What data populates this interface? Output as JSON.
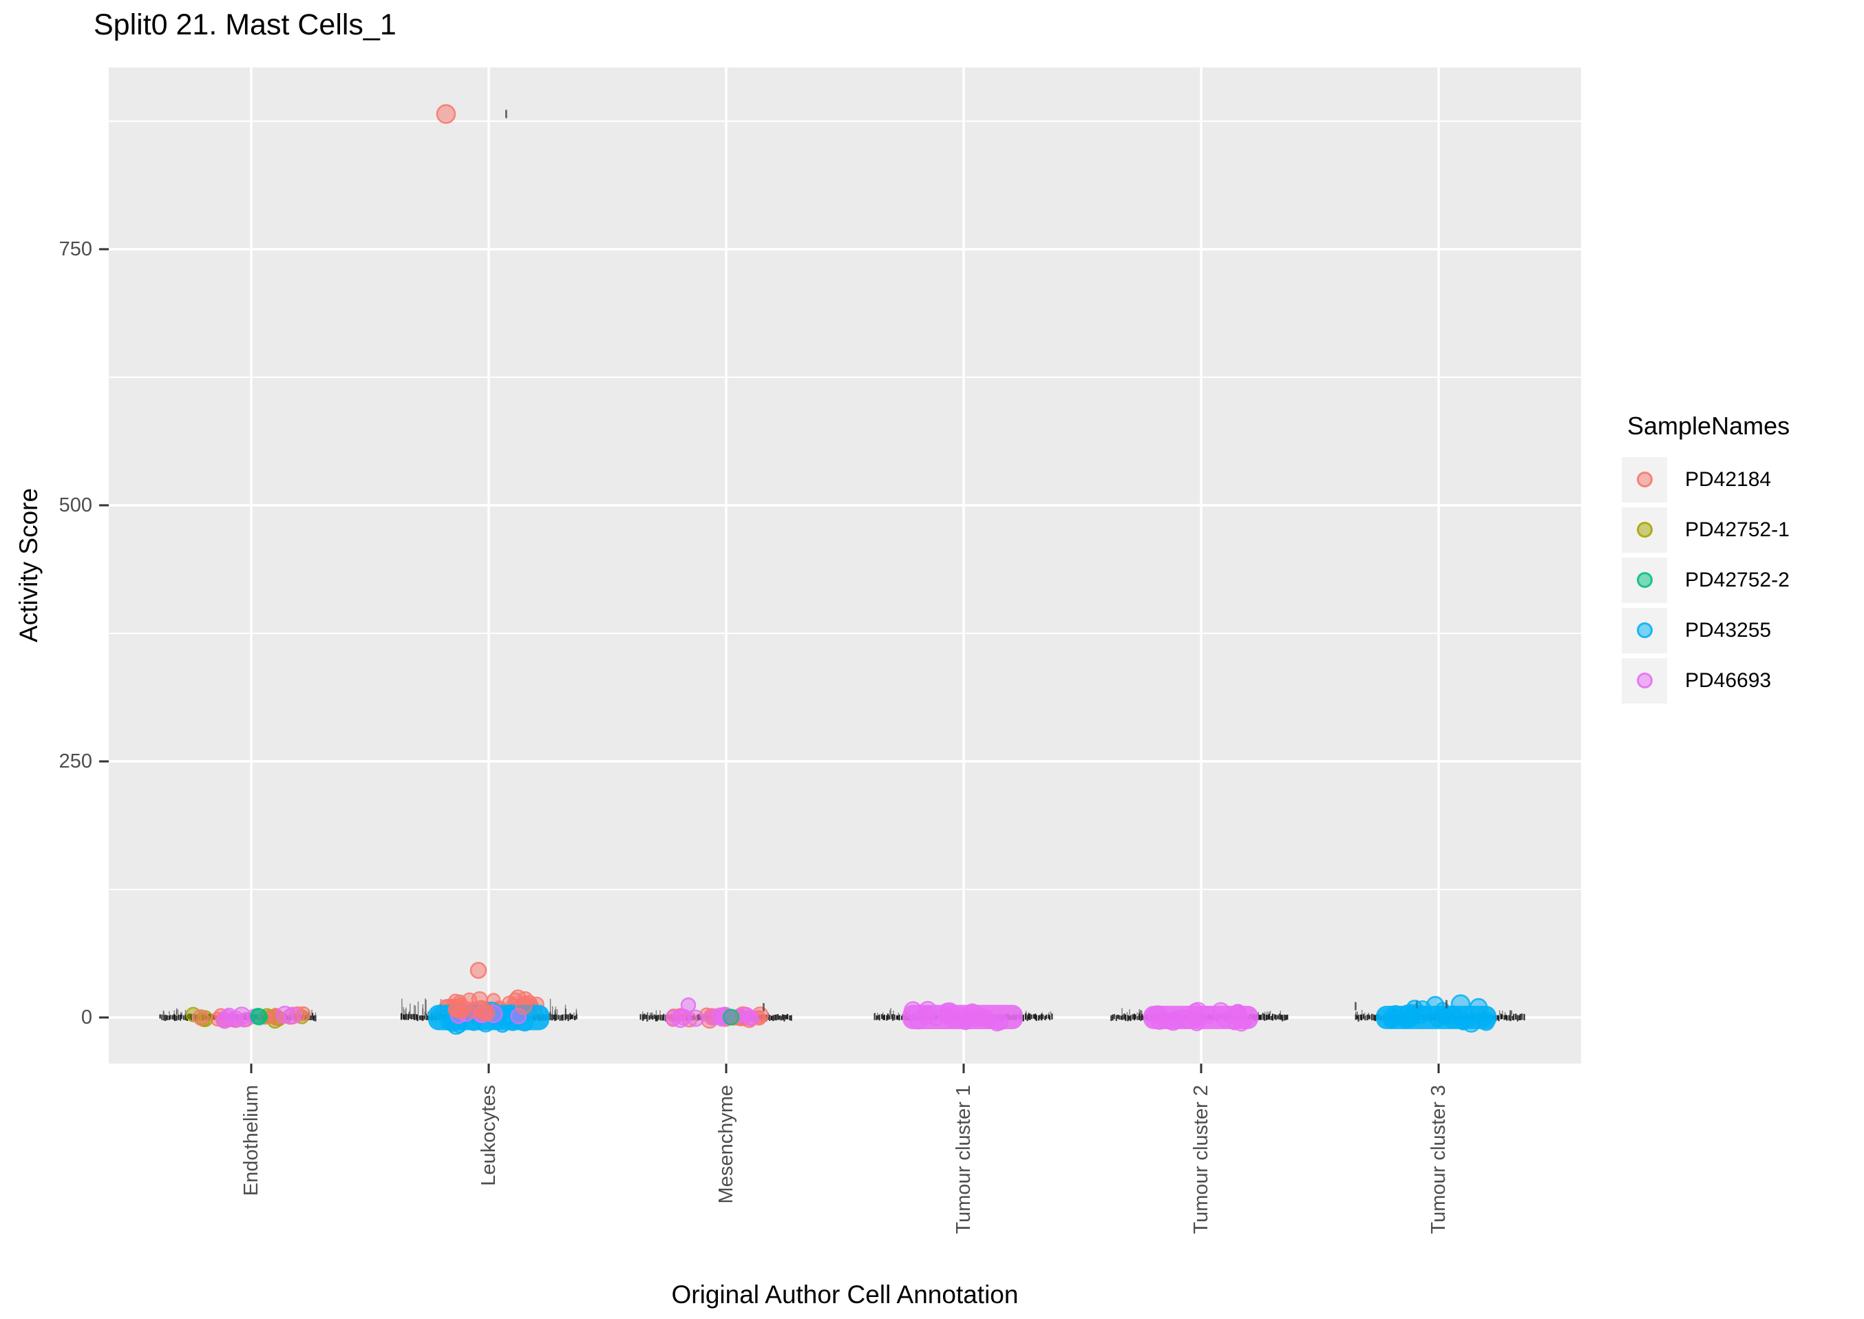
{
  "chart_data": {
    "type": "scatter",
    "subtype": "jittered-strip-plot",
    "title": "Split0 21. Mast Cells_1",
    "xlabel": "Original Author Cell Annotation",
    "ylabel": "Activity Score",
    "legend_title": "SampleNames",
    "legend_position": "right",
    "grid": "on",
    "panel_background": "#EBEBEB",
    "grid_color": "#FFFFFF",
    "tick_label_color": "#4D4D4D",
    "tick_mark_color": "#333333",
    "categories": [
      "Endothelium",
      "Leukocytes",
      "Mesenchyme",
      "Tumour cluster 1",
      "Tumour cluster 2",
      "Tumour cluster 3"
    ],
    "yticks": [
      0,
      250,
      500,
      750
    ],
    "yticks_minor": [
      125,
      375,
      625,
      875
    ],
    "ylim": [
      -46,
      927
    ],
    "series": [
      {
        "name": "PD42184",
        "color": "#F8766D"
      },
      {
        "name": "PD42752-1",
        "color": "#A3A500"
      },
      {
        "name": "PD42752-2",
        "color": "#00BF7D"
      },
      {
        "name": "PD43255",
        "color": "#00B0F6"
      },
      {
        "name": "PD46693",
        "color": "#E76BF3"
      }
    ],
    "note": "Most cells sit at Activity Score ~0 (dense black strip of tiny points per category). Colored jitter clouds per category are described below; x0/x1 are horizontal jitter offsets in px from the category center, v0/v1 are Activity Score values.",
    "clusters": [
      {
        "category": "Endothelium",
        "strip": {
          "x0": -133,
          "x1": 93
        },
        "hairs": [
          {
            "x0": -133,
            "x1": -88,
            "n": 10,
            "vmax": 5
          },
          {
            "x0": 48,
            "x1": 93,
            "n": 8,
            "vmax": 4
          }
        ],
        "blobs": [
          {
            "series": "PD42752-1",
            "shape": "scatter",
            "n": 10,
            "x0": -85,
            "x1": 78,
            "v0": -3,
            "v1": 3,
            "r": 10
          },
          {
            "series": "PD42184",
            "shape": "scatter",
            "n": 13,
            "x0": -80,
            "x1": 78,
            "v0": -3,
            "v1": 4,
            "r": 10
          },
          {
            "series": "PD46693",
            "shape": "scatter",
            "n": 9,
            "x0": -85,
            "x1": 70,
            "v0": -3,
            "v1": 4,
            "r": 11
          },
          {
            "series": "PD42752-2",
            "shape": "scatter",
            "n": 2,
            "x0": -12,
            "x1": 18,
            "v0": -1,
            "v1": 2,
            "r": 10
          }
        ],
        "marks": [],
        "outliers": []
      },
      {
        "category": "Leukocytes",
        "strip": {
          "x0": -128,
          "x1": 128
        },
        "hairs": [
          {
            "x0": -128,
            "x1": -68,
            "n": 26,
            "vmax": 16
          },
          {
            "x0": 62,
            "x1": 128,
            "n": 24,
            "vmax": 14
          }
        ],
        "blobs": [
          {
            "series": "PD42184",
            "shape": "scatter",
            "n": 34,
            "x0": -75,
            "x1": 72,
            "v0": 1,
            "v1": 20,
            "r": 10
          },
          {
            "series": "PD43255",
            "shape": "capsule",
            "x0": -77,
            "x1": 77,
            "v0": -5,
            "v1": 5
          },
          {
            "series": "PD43255",
            "shape": "scatter",
            "n": 26,
            "x0": -74,
            "x1": 72,
            "v0": -8,
            "v1": 8,
            "r": 11
          },
          {
            "series": "PD46693",
            "shape": "scatter",
            "n": 6,
            "x0": -45,
            "x1": 50,
            "v0": 1,
            "v1": 9,
            "r": 11
          },
          {
            "series": "PD42184",
            "shape": "scatter",
            "n": 10,
            "x0": -60,
            "x1": 60,
            "v0": 2,
            "v1": 12,
            "r": 10
          }
        ],
        "marks": [
          {
            "x": 24,
            "v": 882
          }
        ],
        "outliers": [
          {
            "series": "PD42184",
            "x": -15,
            "v": 46,
            "r": 11
          },
          {
            "series": "PD42184",
            "x": -62,
            "v": 882,
            "r": 13
          }
        ]
      },
      {
        "category": "Mesenchyme",
        "strip": {
          "x0": -125,
          "x1": 95
        },
        "hairs": [
          {
            "x0": -125,
            "x1": -85,
            "n": 8,
            "vmax": 4
          }
        ],
        "blobs": [
          {
            "series": "PD42184",
            "shape": "scatter",
            "n": 24,
            "x0": -80,
            "x1": 50,
            "v0": -3,
            "v1": 3,
            "r": 10
          },
          {
            "series": "PD46693",
            "shape": "scatter",
            "n": 13,
            "x0": -78,
            "x1": 45,
            "v0": -2,
            "v1": 3,
            "r": 11
          },
          {
            "series": "PD42752-2",
            "shape": "scatter",
            "n": 1,
            "x0": 5,
            "x1": 9,
            "v0": 0,
            "v1": 1,
            "r": 10
          }
        ],
        "marks": [
          {
            "x": 53,
            "v": 10
          }
        ],
        "outliers": [
          {
            "series": "PD46693",
            "x": -55,
            "v": 12,
            "r": 10
          }
        ]
      },
      {
        "category": "Tumour cluster 1",
        "strip": {
          "x0": -130,
          "x1": 127
        },
        "hairs": [
          {
            "x0": -130,
            "x1": -80,
            "n": 10,
            "vmax": 5
          },
          {
            "x0": 78,
            "x1": 127,
            "n": 8,
            "vmax": 4
          }
        ],
        "blobs": [
          {
            "series": "PD46693",
            "shape": "capsule",
            "x0": -78,
            "x1": 75,
            "v0": -4,
            "v1": 5
          },
          {
            "series": "PD46693",
            "shape": "scatter",
            "n": 26,
            "x0": -75,
            "x1": 72,
            "v0": -8,
            "v1": 8,
            "r": 11
          }
        ],
        "marks": [],
        "outliers": []
      },
      {
        "category": "Tumour cluster 2",
        "strip": {
          "x0": -132,
          "x1": 126
        },
        "hairs": [
          {
            "x0": -132,
            "x1": -75,
            "n": 9,
            "vmax": 5
          },
          {
            "x0": 75,
            "x1": 126,
            "n": 7,
            "vmax": 4
          }
        ],
        "blobs": [
          {
            "series": "PD46693",
            "shape": "capsule",
            "x0": -73,
            "x1": 72,
            "v0": -4,
            "v1": 4
          },
          {
            "series": "PD46693",
            "shape": "scatter",
            "n": 22,
            "x0": -70,
            "x1": 69,
            "v0": -7,
            "v1": 8,
            "r": 11
          }
        ],
        "marks": [],
        "outliers": []
      },
      {
        "category": "Tumour cluster 3",
        "strip": {
          "x0": -122,
          "x1": 125
        },
        "hairs": [
          {
            "x0": -122,
            "x1": -75,
            "n": 7,
            "vmax": 4
          },
          {
            "x0": 60,
            "x1": 125,
            "n": 6,
            "vmax": 4
          }
        ],
        "blobs": [
          {
            "series": "PD43255",
            "shape": "capsule",
            "x0": -80,
            "x1": 73,
            "v0": -4,
            "v1": 4
          },
          {
            "series": "PD43255",
            "shape": "scatter",
            "n": 24,
            "x0": -77,
            "x1": 70,
            "v0": -7,
            "v1": 8,
            "r": 11
          }
        ],
        "marks": [
          {
            "x": -122,
            "v": 11
          },
          {
            "x": -33,
            "v": 13
          },
          {
            "x": 10,
            "v": 13
          },
          {
            "x": 103,
            "v": 3
          }
        ],
        "outliers": [
          {
            "series": "PD43255",
            "x": -35,
            "v": 9,
            "r": 11
          },
          {
            "series": "PD43255",
            "x": -5,
            "v": 12,
            "r": 12
          },
          {
            "series": "PD43255",
            "x": 32,
            "v": 13,
            "r": 13
          },
          {
            "series": "PD43255",
            "x": 58,
            "v": 10,
            "r": 12
          }
        ]
      }
    ]
  },
  "legend": {
    "title": "SampleNames",
    "items": [
      {
        "label": "PD42184",
        "color": "#F8766D"
      },
      {
        "label": "PD42752-1",
        "color": "#A3A500"
      },
      {
        "label": "PD42752-2",
        "color": "#00BF7D"
      },
      {
        "label": "PD43255",
        "color": "#00B0F6"
      },
      {
        "label": "PD46693",
        "color": "#E76BF3"
      }
    ]
  }
}
